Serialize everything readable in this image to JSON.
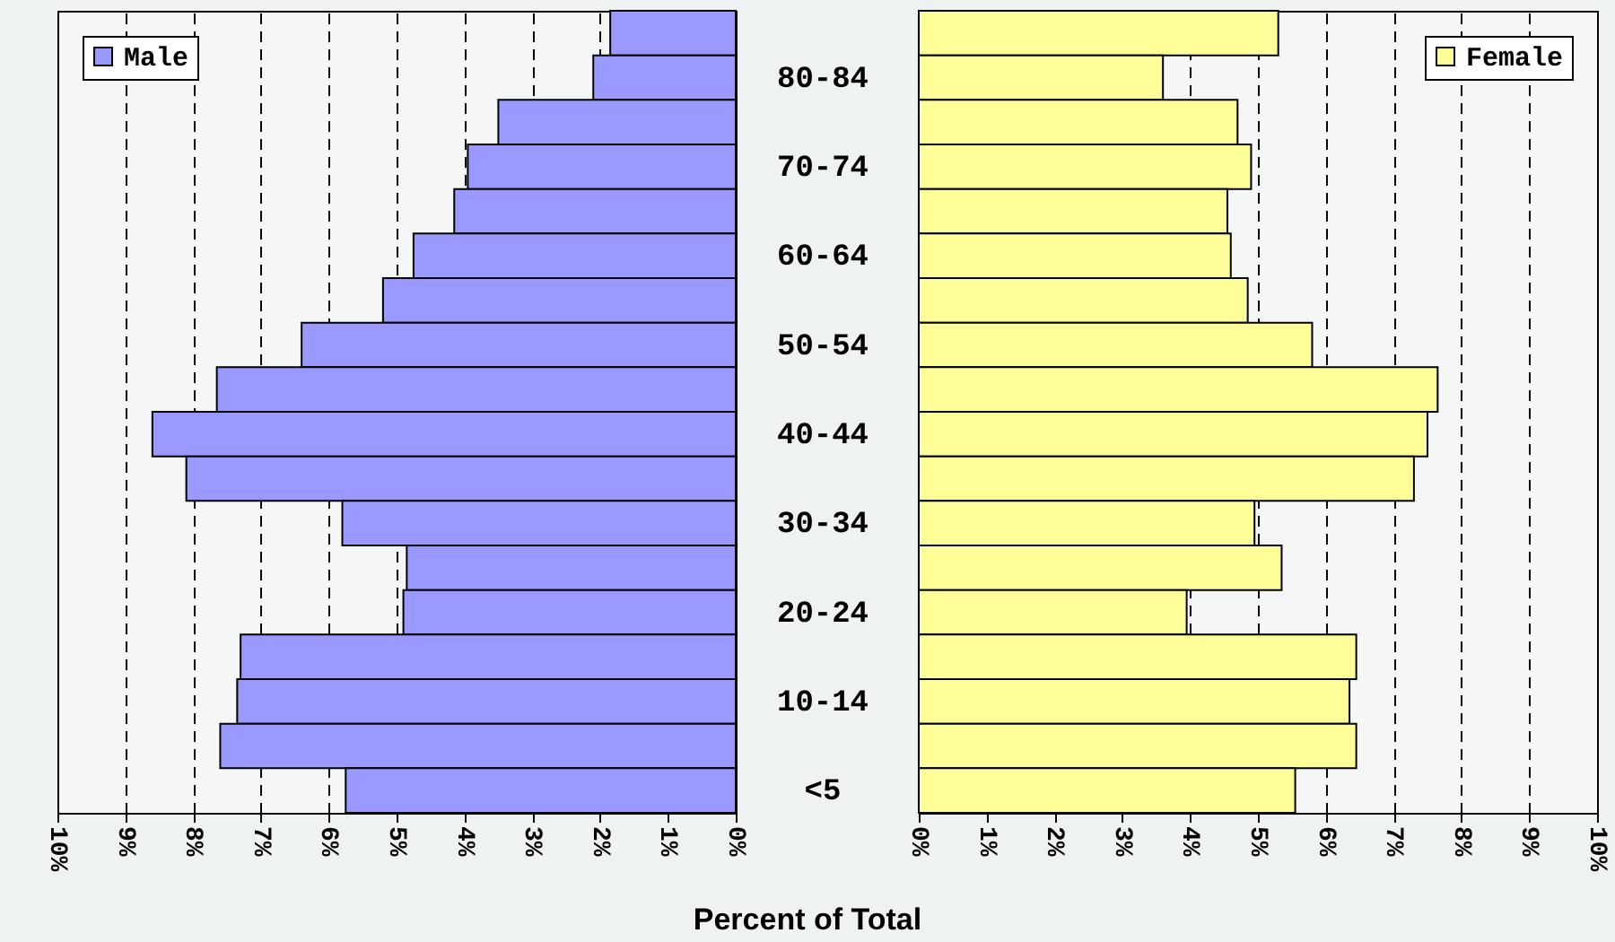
{
  "chart_data": [
    {
      "type": "bar",
      "orientation": "horizontal",
      "categories": [
        null,
        "80-84",
        null,
        "70-74",
        null,
        "60-64",
        null,
        "50-54",
        null,
        "40-44",
        null,
        "30-34",
        null,
        "20-24",
        null,
        "10-14",
        null,
        "<5"
      ],
      "series": [
        {
          "name": "Male",
          "color": "#9999ff",
          "values": [
            1.85,
            2.1,
            3.5,
            3.95,
            4.15,
            4.75,
            5.2,
            6.4,
            7.65,
            8.6,
            8.1,
            5.8,
            4.85,
            4.9,
            7.3,
            7.35,
            7.6,
            5.75
          ]
        }
      ],
      "xlim": [
        10,
        0
      ],
      "xticks": [
        {
          "value": 10,
          "label": "10%"
        },
        {
          "value": 9,
          "label": "9%"
        },
        {
          "value": 8,
          "label": "8%"
        },
        {
          "value": 7,
          "label": "7%"
        },
        {
          "value": 6,
          "label": "6%"
        },
        {
          "value": 5,
          "label": "5%"
        },
        {
          "value": 4,
          "label": "4%"
        },
        {
          "value": 3,
          "label": "3%"
        },
        {
          "value": 2,
          "label": "2%"
        },
        {
          "value": 1,
          "label": "1%"
        },
        {
          "value": 0,
          "label": "0%"
        }
      ],
      "grid": "x",
      "legend": "top left",
      "xlabel": "Percent of Total"
    },
    {
      "type": "bar",
      "orientation": "horizontal",
      "categories": [
        null,
        null,
        null,
        null,
        null,
        null,
        null,
        null,
        null,
        null,
        null,
        null,
        null,
        null,
        null,
        null,
        null,
        null
      ],
      "series": [
        {
          "name": "Female",
          "color": "#ffff99",
          "values": [
            5.3,
            3.6,
            4.7,
            4.9,
            4.55,
            4.6,
            4.85,
            5.8,
            7.65,
            7.5,
            7.3,
            4.95,
            5.35,
            3.95,
            6.45,
            6.35,
            6.45,
            5.55
          ]
        }
      ],
      "xlim": [
        0,
        10
      ],
      "xticks": [
        {
          "value": 0,
          "label": "0%"
        },
        {
          "value": 1,
          "label": "1%"
        },
        {
          "value": 2,
          "label": "2%"
        },
        {
          "value": 3,
          "label": "3%"
        },
        {
          "value": 4,
          "label": "4%"
        },
        {
          "value": 5,
          "label": "5%"
        },
        {
          "value": 6,
          "label": "6%"
        },
        {
          "value": 7,
          "label": "7%"
        },
        {
          "value": 8,
          "label": "8%"
        },
        {
          "value": 9,
          "label": "9%"
        },
        {
          "value": 10,
          "label": "10%"
        }
      ],
      "grid": "x",
      "legend": "top right"
    }
  ]
}
